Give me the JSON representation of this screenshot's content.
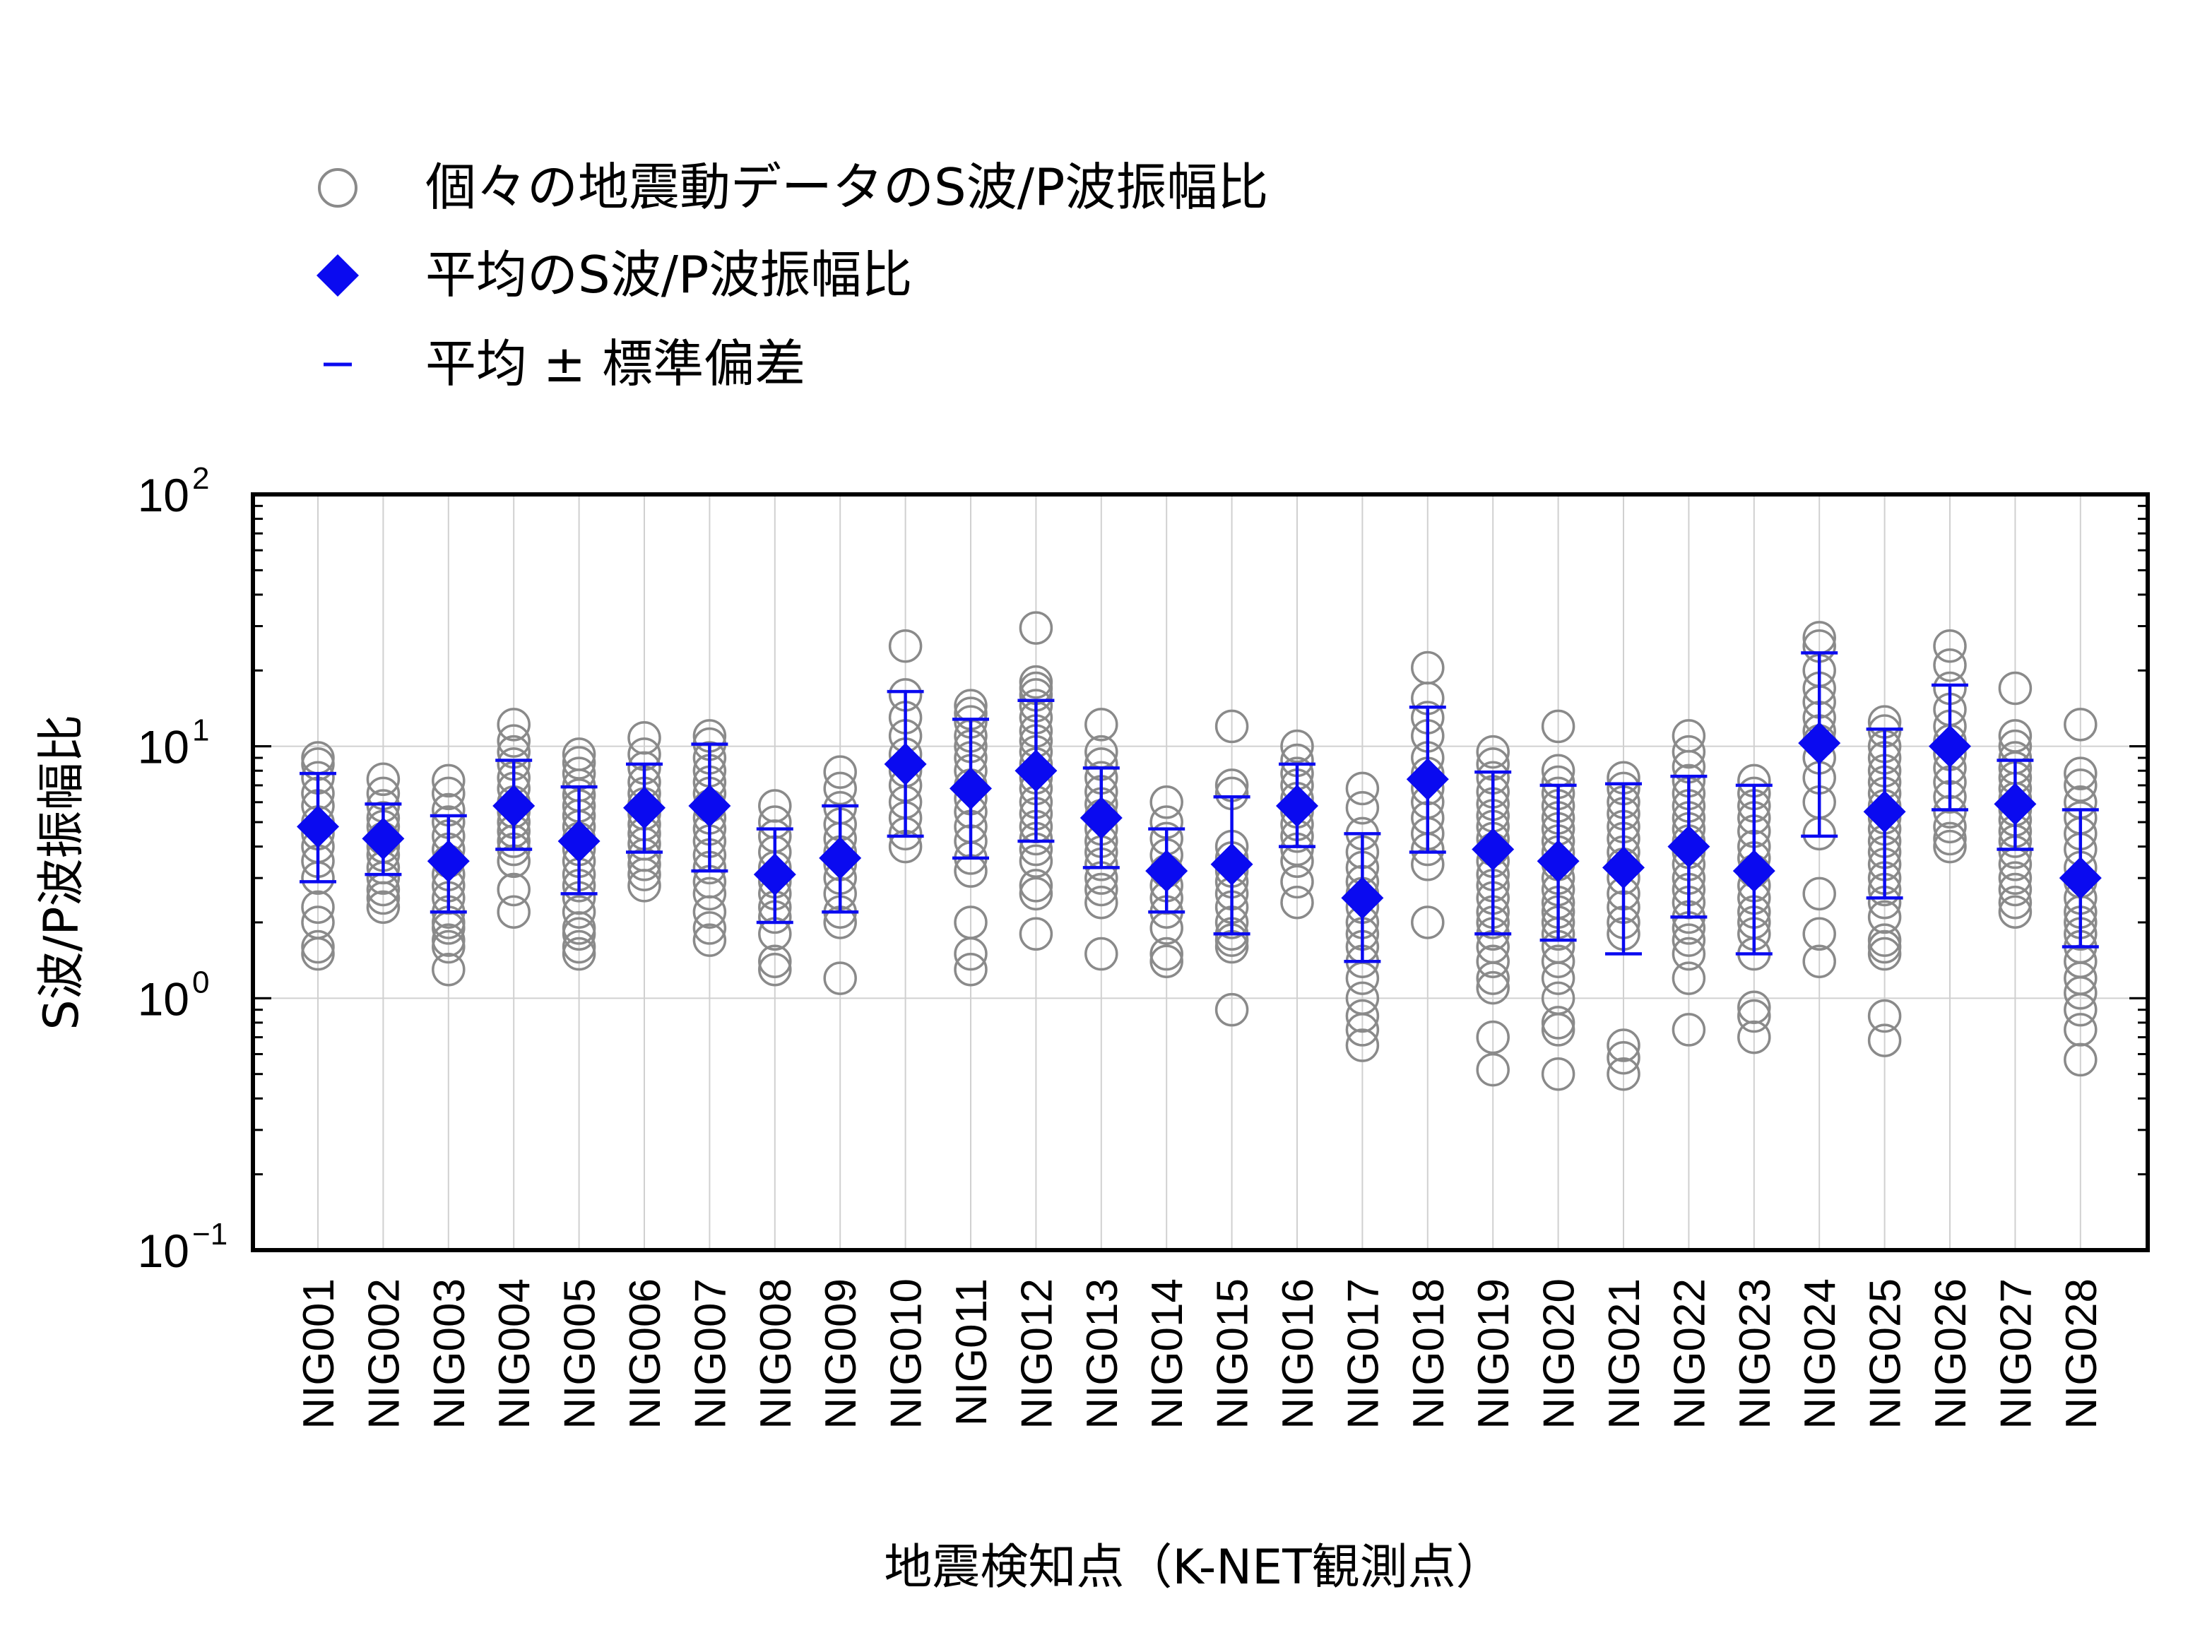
{
  "chart_data": {
    "type": "scatter",
    "xlabel": "地震検知点（K-NET観測点）",
    "ylabel": "S波/P波振幅比",
    "yscale": "log",
    "ylim": [
      0.1,
      100
    ],
    "grid": true,
    "legend_placement": "top-left",
    "yticks": [
      {
        "value": 0.1,
        "base": "10",
        "exp": "−1"
      },
      {
        "value": 1,
        "base": "10",
        "exp": "0"
      },
      {
        "value": 10,
        "base": "10",
        "exp": "1"
      },
      {
        "value": 100,
        "base": "10",
        "exp": "2"
      }
    ],
    "legend": [
      {
        "marker": "circle",
        "label": "個々の地震動データのS波/P波振幅比"
      },
      {
        "marker": "diamond",
        "label": "平均のS波/P波振幅比"
      },
      {
        "marker": "dash",
        "label": "平均 ± 標準偏差"
      }
    ],
    "colors": {
      "individual": "#8a8a8a",
      "mean": "#0a0af0",
      "grid": "#d0d0d0",
      "axis": "#000000"
    },
    "categories": [
      "NIG001",
      "NIG002",
      "NIG003",
      "NIG004",
      "NIG005",
      "NIG006",
      "NIG007",
      "NIG008",
      "NIG009",
      "NIG010",
      "NIG011",
      "NIG012",
      "NIG013",
      "NIG014",
      "NIG015",
      "NIG016",
      "NIG017",
      "NIG018",
      "NIG019",
      "NIG020",
      "NIG021",
      "NIG022",
      "NIG023",
      "NIG024",
      "NIG025",
      "NIG026",
      "NIG027",
      "NIG028"
    ],
    "mean": [
      4.8,
      4.3,
      3.5,
      5.8,
      4.2,
      5.7,
      5.8,
      3.1,
      3.6,
      8.5,
      6.8,
      8.0,
      5.2,
      3.2,
      3.4,
      5.8,
      2.5,
      7.4,
      3.9,
      3.5,
      3.3,
      4.0,
      3.2,
      10.3,
      5.5,
      10.0,
      5.9,
      3.0
    ],
    "upper": [
      7.8,
      5.9,
      5.3,
      8.8,
      6.9,
      8.5,
      10.2,
      4.7,
      5.8,
      16.5,
      12.8,
      15.2,
      8.2,
      4.7,
      6.3,
      8.5,
      4.5,
      14.3,
      7.9,
      7.0,
      7.1,
      7.6,
      7.0,
      23.5,
      11.7,
      17.5,
      8.8,
      5.6
    ],
    "lower": [
      2.9,
      3.1,
      2.2,
      3.9,
      2.6,
      3.8,
      3.2,
      2.0,
      2.2,
      4.4,
      3.6,
      4.2,
      3.3,
      2.2,
      1.8,
      4.0,
      1.4,
      3.8,
      1.8,
      1.7,
      1.5,
      2.1,
      1.5,
      4.4,
      2.5,
      5.6,
      3.9,
      1.6
    ],
    "individual": [
      [
        9.0,
        8.5,
        7.5,
        6.5,
        5.8,
        5.0,
        4.5,
        4.0,
        3.5,
        3.0,
        2.3,
        2.0,
        1.6,
        1.5
      ],
      [
        7.4,
        6.5,
        5.8,
        5.2,
        4.8,
        4.3,
        4.0,
        3.7,
        3.3,
        3.0,
        2.7,
        2.5,
        2.3
      ],
      [
        7.3,
        6.5,
        5.6,
        5.0,
        4.4,
        3.9,
        3.5,
        3.1,
        2.8,
        2.5,
        2.2,
        2.0,
        1.9,
        1.7,
        1.6,
        1.3
      ],
      [
        12.2,
        10.5,
        9.5,
        8.5,
        7.5,
        6.8,
        6.0,
        5.5,
        5.0,
        4.6,
        4.2,
        3.9,
        3.5,
        2.7,
        2.2
      ],
      [
        9.3,
        8.6,
        7.8,
        7.0,
        6.4,
        5.8,
        5.3,
        4.8,
        4.3,
        3.9,
        3.5,
        3.1,
        2.8,
        2.5,
        2.2,
        1.9,
        1.8,
        1.6,
        1.5
      ],
      [
        10.8,
        9.3,
        8.2,
        7.2,
        6.5,
        5.9,
        5.4,
        4.9,
        4.5,
        4.1,
        3.7,
        3.4,
        3.1,
        2.8
      ],
      [
        11.0,
        10.2,
        9.0,
        8.0,
        7.2,
        6.5,
        5.8,
        5.2,
        4.7,
        4.2,
        3.7,
        3.3,
        2.9,
        2.6,
        2.2,
        1.9,
        1.7
      ],
      [
        5.8,
        5.0,
        4.4,
        3.8,
        3.3,
        2.9,
        2.6,
        2.3,
        2.1,
        1.8,
        1.4,
        1.3
      ],
      [
        7.9,
        6.8,
        5.7,
        4.9,
        4.3,
        3.8,
        3.4,
        3.0,
        2.6,
        2.2,
        2.0,
        1.2
      ],
      [
        25.0,
        16.0,
        13.0,
        11.0,
        9.3,
        8.0,
        7.0,
        6.0,
        5.2,
        4.5,
        4.0
      ],
      [
        14.5,
        13.5,
        12.5,
        11.0,
        10.0,
        9.0,
        8.0,
        7.0,
        6.2,
        5.5,
        4.8,
        4.2,
        3.6,
        3.2,
        2.0,
        1.5,
        1.3
      ],
      [
        29.5,
        18.0,
        17.0,
        16.0,
        14.5,
        13.0,
        11.5,
        10.5,
        9.5,
        8.5,
        7.5,
        6.8,
        6.0,
        5.4,
        4.8,
        4.3,
        3.9,
        3.5,
        2.8,
        2.6,
        1.8
      ],
      [
        12.2,
        9.5,
        8.5,
        7.5,
        6.6,
        5.9,
        5.3,
        4.7,
        4.2,
        3.8,
        3.4,
        3.0,
        2.7,
        2.4,
        1.5
      ],
      [
        6.0,
        5.0,
        4.3,
        3.7,
        3.2,
        2.8,
        2.5,
        2.2,
        1.9,
        1.5,
        1.4
      ],
      [
        12.0,
        7.0,
        6.5,
        4.0,
        3.6,
        3.2,
        2.9,
        2.6,
        2.3,
        2.0,
        1.8,
        1.7,
        1.6,
        0.9
      ],
      [
        10.0,
        8.8,
        7.8,
        7.0,
        6.2,
        5.5,
        4.9,
        4.4,
        3.9,
        3.5,
        2.9,
        2.4
      ],
      [
        6.8,
        5.7,
        4.5,
        3.8,
        3.3,
        2.9,
        2.6,
        2.3,
        2.0,
        1.8,
        1.6,
        1.4,
        1.2,
        1.0,
        0.85,
        0.75,
        0.65
      ],
      [
        20.5,
        15.5,
        13.0,
        11.0,
        9.0,
        7.8,
        6.8,
        6.0,
        5.2,
        4.5,
        3.9,
        3.4,
        2.0
      ],
      [
        9.5,
        8.5,
        7.5,
        6.6,
        5.9,
        5.3,
        4.8,
        4.3,
        3.9,
        3.5,
        3.1,
        2.8,
        2.5,
        2.2,
        2.0,
        1.8,
        1.6,
        1.4,
        1.2,
        1.1,
        0.7,
        0.52
      ],
      [
        12.0,
        8.0,
        7.2,
        6.5,
        5.8,
        5.2,
        4.7,
        4.2,
        3.8,
        3.4,
        3.0,
        2.7,
        2.4,
        2.2,
        2.0,
        1.8,
        1.6,
        1.4,
        1.2,
        1.0,
        0.8,
        0.75,
        0.5
      ],
      [
        7.5,
        6.8,
        6.0,
        5.4,
        4.8,
        4.3,
        3.8,
        3.4,
        3.0,
        2.6,
        2.3,
        2.0,
        1.8,
        0.65,
        0.58,
        0.5
      ],
      [
        11.0,
        9.5,
        8.3,
        7.3,
        6.5,
        5.8,
        5.2,
        4.7,
        4.2,
        3.8,
        3.4,
        3.0,
        2.7,
        2.4,
        2.1,
        1.9,
        1.7,
        1.5,
        1.2,
        0.75
      ],
      [
        7.3,
        6.5,
        5.8,
        5.2,
        4.6,
        4.0,
        3.6,
        3.2,
        2.8,
        2.5,
        2.2,
        2.0,
        1.8,
        1.5,
        0.92,
        0.85,
        0.7
      ],
      [
        27.0,
        25.0,
        20.0,
        17.0,
        15.0,
        13.0,
        11.5,
        10.5,
        9.0,
        7.5,
        6.0,
        4.5,
        2.6,
        1.8,
        1.4
      ],
      [
        12.5,
        11.5,
        10.0,
        9.0,
        8.0,
        7.2,
        6.5,
        5.8,
        5.2,
        4.7,
        4.2,
        3.8,
        3.4,
        3.0,
        2.7,
        2.4,
        2.1,
        1.7,
        1.6,
        1.5,
        0.85,
        0.68
      ],
      [
        25.0,
        21.0,
        17.0,
        14.0,
        12.0,
        10.5,
        9.3,
        8.2,
        7.2,
        6.3,
        5.5,
        4.8,
        4.3,
        4.0
      ],
      [
        17.0,
        11.0,
        10.0,
        9.0,
        8.2,
        7.5,
        6.8,
        6.2,
        5.6,
        5.1,
        4.6,
        4.2,
        3.8,
        3.4,
        3.0,
        2.7,
        2.4,
        2.2
      ],
      [
        12.2,
        7.8,
        7.0,
        6.0,
        5.2,
        4.5,
        3.9,
        3.3,
        2.9,
        2.5,
        2.2,
        2.0,
        1.8,
        1.6,
        1.4,
        1.2,
        1.05,
        0.9,
        0.75,
        0.57
      ]
    ]
  }
}
